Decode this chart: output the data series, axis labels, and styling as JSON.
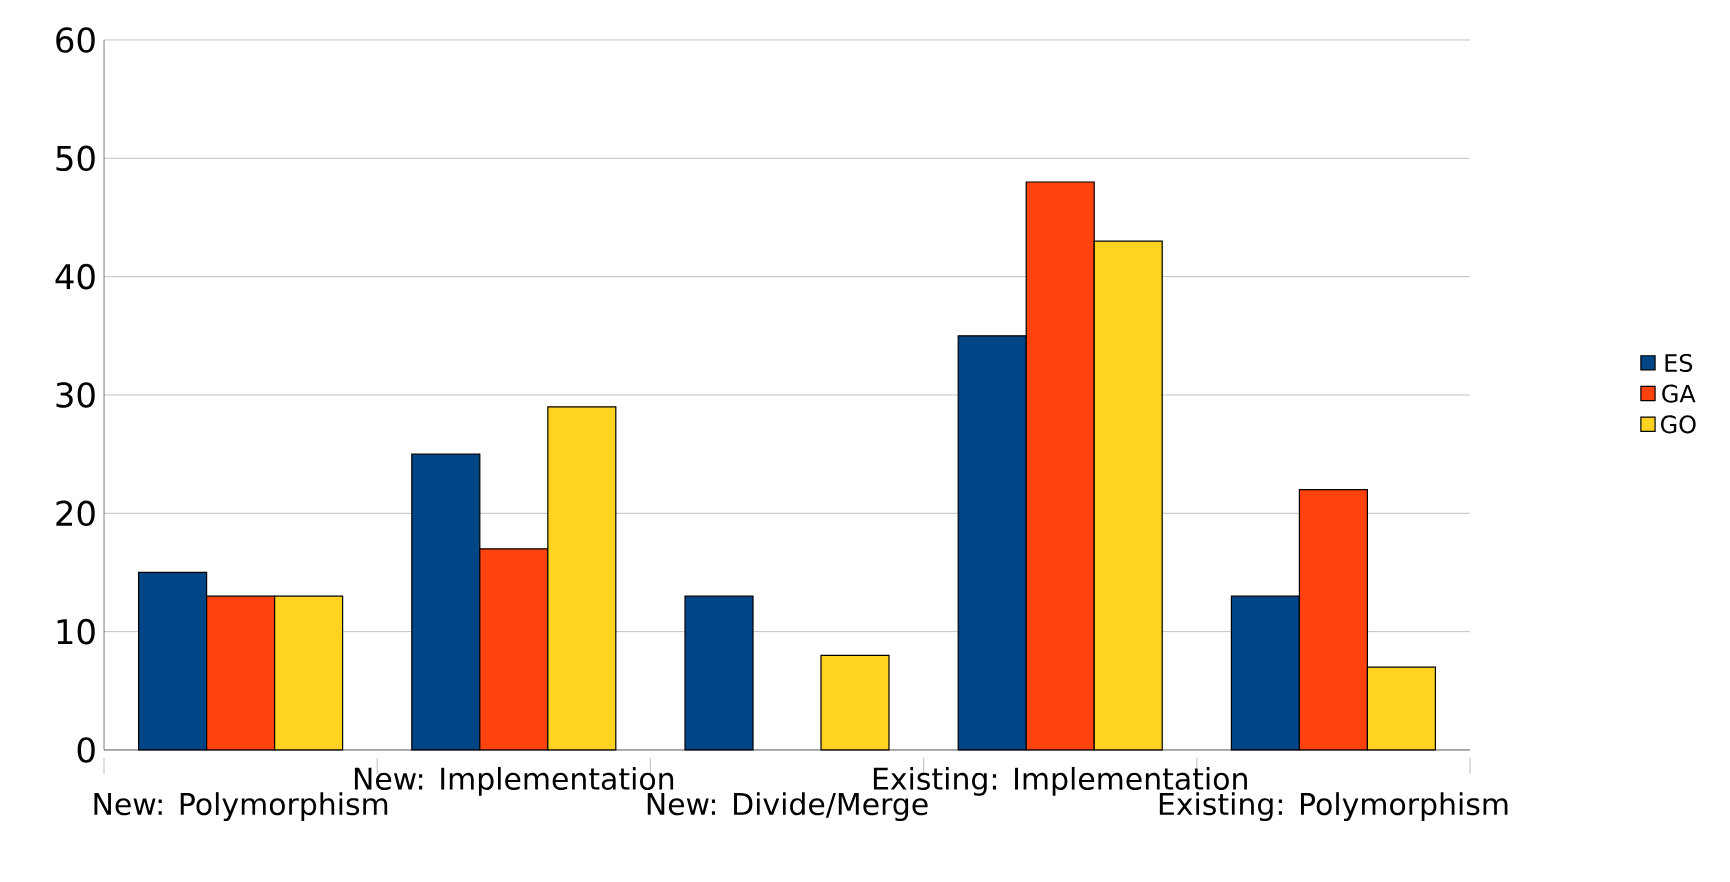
{
  "chart_data": {
    "type": "bar",
    "categories": [
      "New: Polymorphism",
      "New: Implementation",
      "New: Divide/Merge",
      "Existing: Implementation",
      "Existing: Polymorphism"
    ],
    "series": [
      {
        "name": "ES",
        "color": "#004586",
        "values": [
          15,
          25,
          13,
          35,
          13
        ]
      },
      {
        "name": "GA",
        "color": "#ff420e",
        "values": [
          13,
          17,
          null,
          48,
          22
        ]
      },
      {
        "name": "GO",
        "color": "#ffd320",
        "values": [
          13,
          29,
          8,
          43,
          7
        ]
      }
    ],
    "ylim": [
      0,
      60
    ],
    "yticks": [
      0,
      10,
      20,
      30,
      40,
      50,
      60
    ],
    "grid": "y",
    "legend": "right"
  }
}
